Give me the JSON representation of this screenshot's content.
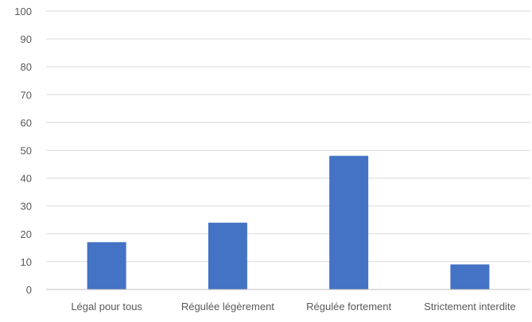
{
  "chart_data": {
    "type": "bar",
    "title": "",
    "xlabel": "",
    "ylabel": "",
    "categories": [
      "Légal pour tous",
      "Régulée légèrement",
      "Régulée fortement",
      "Strictement interdite"
    ],
    "values": [
      17,
      24,
      48,
      9
    ],
    "ylim": [
      0,
      100
    ],
    "yticks": [
      0,
      10,
      20,
      30,
      40,
      50,
      60,
      70,
      80,
      90,
      100
    ],
    "grid": true,
    "legend": "none",
    "colors": {
      "bar": "#4472C4",
      "grid": "#D9D9D9",
      "axis": "#BFBFBF",
      "text": "#595959"
    }
  }
}
